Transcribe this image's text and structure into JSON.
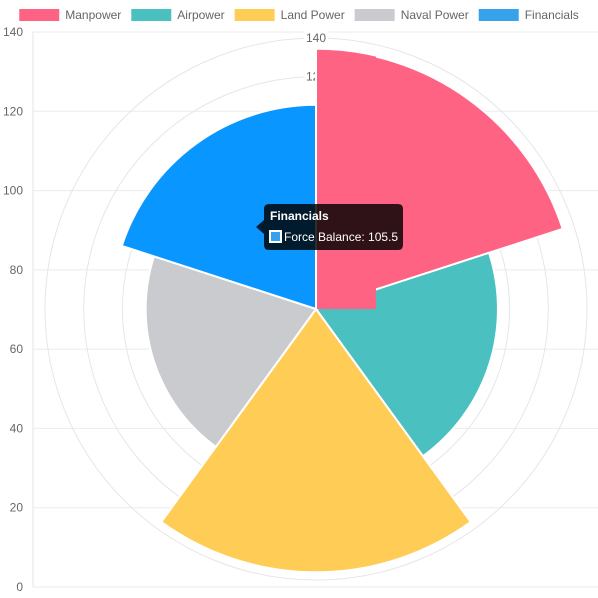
{
  "chart_data": {
    "type": "polarArea",
    "series_name": "Force Balance",
    "categories": [
      "Manpower",
      "Airpower",
      "Land Power",
      "Naval Power",
      "Financials"
    ],
    "values": [
      134,
      94,
      136,
      88,
      105.5
    ],
    "colors": [
      "#FF6384",
      "#4BC0C0",
      "#FFCD56",
      "#C9CBCF",
      "#0A96FF"
    ],
    "legend_colors": [
      "#FF6384",
      "#4BC0C0",
      "#FFCD56",
      "#C9CBCF",
      "#36A2EB"
    ],
    "legend_position": "top",
    "radial_ticks": [
      120,
      140
    ],
    "radial_range": [
      0,
      140
    ],
    "y_axis_ticks": [
      0,
      20,
      40,
      60,
      80,
      100,
      120,
      140
    ],
    "y_axis_range": [
      0,
      140
    ],
    "grid": true,
    "tooltip": {
      "title": "Financials",
      "label": "Force Balance: 105.5",
      "color": "#36A2EB"
    }
  }
}
